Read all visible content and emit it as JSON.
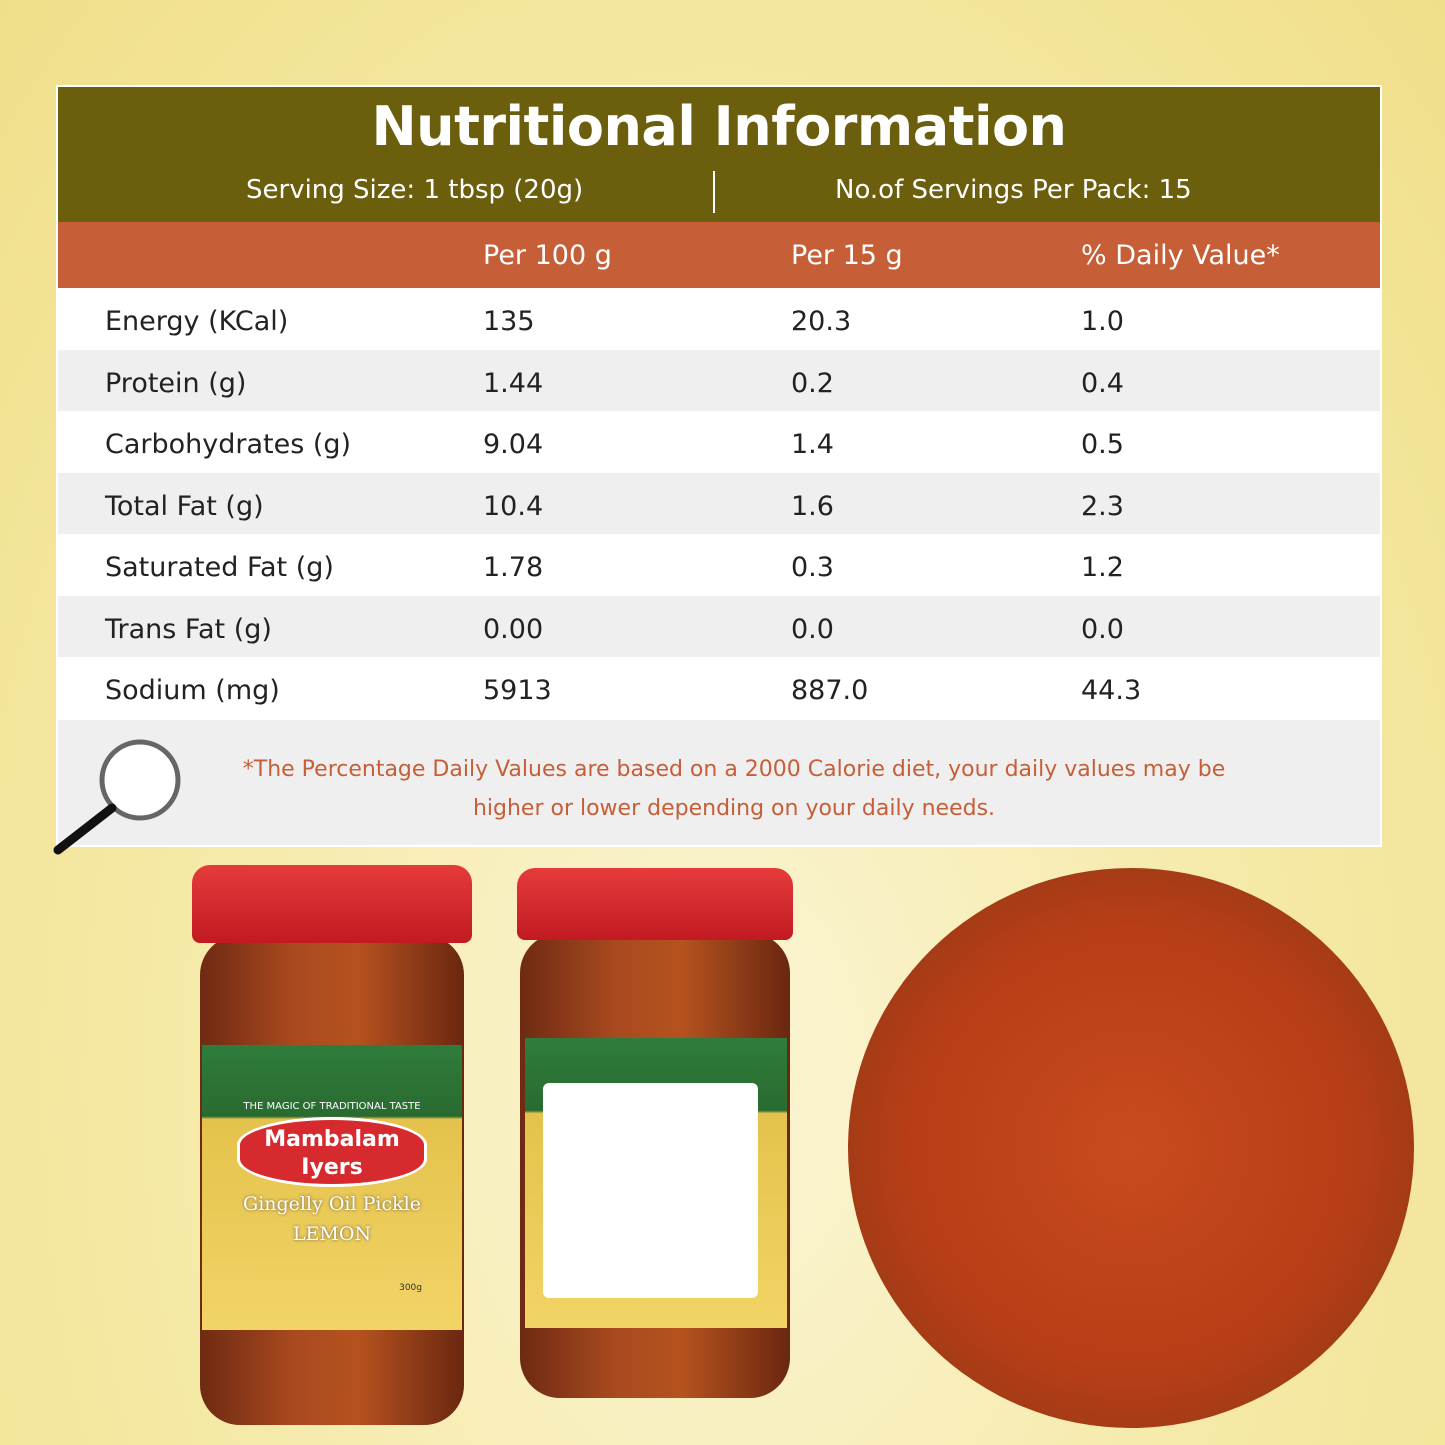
{
  "title": "Nutritional Information",
  "serving_size": "Serving Size: 1 tbsp (20g)",
  "servings_per_pack": "No.of Servings Per Pack: 15",
  "columns": [
    "",
    "Per 100 g",
    "Per 15 g",
    "% Daily Value*"
  ],
  "rows": [
    {
      "name": "Energy (KCal)",
      "per100": "135",
      "per15": "20.3",
      "dv": "1.0"
    },
    {
      "name": "Protein (g)",
      "per100": "1.44",
      "per15": "0.2",
      "dv": "0.4"
    },
    {
      "name": "Carbohydrates (g)",
      "per100": "9.04",
      "per15": "1.4",
      "dv": "0.5"
    },
    {
      "name": "Total Fat (g)",
      "per100": "10.4",
      "per15": "1.6",
      "dv": "2.3"
    },
    {
      "name": "Saturated Fat (g)",
      "per100": "1.78",
      "per15": "0.3",
      "dv": "1.2"
    },
    {
      "name": "Trans Fat (g)",
      "per100": "0.00",
      "per15": "0.0",
      "dv": "0.0"
    },
    {
      "name": "Sodium (mg)",
      "per100": "5913",
      "per15": "887.0",
      "dv": "44.3"
    }
  ],
  "footnote": "*The Percentage Daily Values are based on a 2000 Calorie diet, your daily values may be higher or lower depending on your daily needs.",
  "product": {
    "tagline": "THE MAGIC OF TRADITIONAL TASTE",
    "brand": "Mambalam Iyers",
    "name": "Gingelly Oil Pickle",
    "variant": "LEMON",
    "weight": "300g"
  },
  "colors": {
    "header": "#6b5e0d",
    "column_header": "#c65f38",
    "footnote": "#c65f38",
    "lid": "#d62a2f"
  }
}
